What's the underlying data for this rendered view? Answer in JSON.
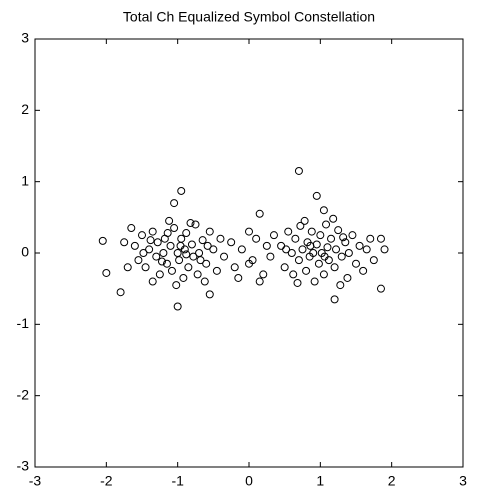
{
  "chart_data": {
    "type": "scatter",
    "title": "Total Ch Equalized Symbol Constellation",
    "color": "#000000",
    "marker": "o",
    "x": [
      -1.6,
      -1.55,
      -1.5,
      -1.45,
      -1.4,
      -1.35,
      -1.3,
      -1.28,
      -1.25,
      -1.2,
      -1.18,
      -1.15,
      -1.1,
      -1.08,
      -1.05,
      -1.0,
      -0.98,
      -0.95,
      -0.92,
      -0.9,
      -0.88,
      -0.85,
      -0.8,
      -0.78,
      -0.75,
      -0.72,
      -0.7,
      -0.65,
      -0.6,
      -0.55,
      -0.5,
      -0.45,
      -0.4,
      -0.35,
      -1.7,
      -1.75,
      -1.65,
      -1.35,
      -1.12,
      -0.82,
      -1.02,
      -0.62,
      -1.48,
      -1.22,
      -0.96,
      -0.68,
      -1.38,
      -1.14,
      -0.88,
      -0.58,
      -0.25,
      -0.2,
      -0.1,
      0.0,
      0.05,
      0.1,
      0.2,
      0.25,
      0.3,
      0.35,
      -0.15,
      0.15,
      0.0,
      0.45,
      0.5,
      0.55,
      0.6,
      0.62,
      0.65,
      0.7,
      0.72,
      0.75,
      0.8,
      0.82,
      0.85,
      0.88,
      0.9,
      0.92,
      0.95,
      0.98,
      1.0,
      1.02,
      1.05,
      1.08,
      1.1,
      1.12,
      1.15,
      1.2,
      1.22,
      1.25,
      1.3,
      1.35,
      1.38,
      1.4,
      1.45,
      1.5,
      1.55,
      1.6,
      1.65,
      1.7,
      1.75,
      0.78,
      1.18,
      0.68,
      1.28,
      0.52,
      0.86,
      1.06,
      1.32,
      0.7,
      -0.95,
      0.95,
      -1.05,
      -1.0,
      -2.05,
      -2.0,
      -1.8,
      1.85,
      1.9,
      1.85,
      1.2,
      -0.55,
      1.05,
      0.15
    ],
    "values": [
      0.1,
      -0.1,
      0.25,
      -0.2,
      0.05,
      0.3,
      -0.05,
      0.15,
      -0.3,
      0.0,
      0.2,
      -0.15,
      0.1,
      -0.25,
      0.35,
      0.0,
      -0.1,
      0.2,
      -0.35,
      0.05,
      0.28,
      -0.2,
      0.12,
      -0.05,
      0.4,
      -0.3,
      0.0,
      0.18,
      -0.15,
      0.3,
      0.05,
      -0.25,
      0.2,
      -0.05,
      -0.2,
      0.15,
      0.35,
      -0.4,
      0.45,
      0.42,
      -0.45,
      -0.4,
      0.0,
      -0.12,
      0.1,
      -0.1,
      0.18,
      0.28,
      -0.02,
      0.1,
      0.15,
      -0.2,
      0.05,
      0.3,
      -0.1,
      0.2,
      -0.3,
      0.1,
      -0.05,
      0.25,
      -0.35,
      -0.4,
      -0.15,
      0.1,
      -0.2,
      0.3,
      0.0,
      -0.3,
      0.2,
      -0.1,
      0.38,
      0.05,
      -0.25,
      0.15,
      -0.05,
      0.3,
      0.0,
      -0.4,
      0.12,
      -0.15,
      0.25,
      0.0,
      -0.3,
      0.4,
      0.08,
      -0.1,
      0.2,
      -0.2,
      0.05,
      0.32,
      -0.05,
      0.15,
      -0.35,
      0.0,
      0.25,
      -0.15,
      0.1,
      -0.25,
      0.05,
      0.2,
      -0.1,
      0.45,
      0.48,
      -0.42,
      -0.45,
      0.05,
      0.1,
      -0.05,
      0.22,
      1.15,
      0.87,
      0.8,
      0.7,
      -0.75,
      0.17,
      -0.28,
      -0.55,
      -0.5,
      0.05,
      0.2,
      -0.65,
      -0.58,
      0.6,
      0.55
    ],
    "xlim": [
      -3,
      3
    ],
    "xticks": [
      -3,
      -2,
      -1,
      0,
      1,
      2,
      3
    ],
    "ylim": [
      -3,
      3
    ],
    "yticks": [
      -3,
      -2,
      -1,
      0,
      1,
      2,
      3
    ]
  }
}
